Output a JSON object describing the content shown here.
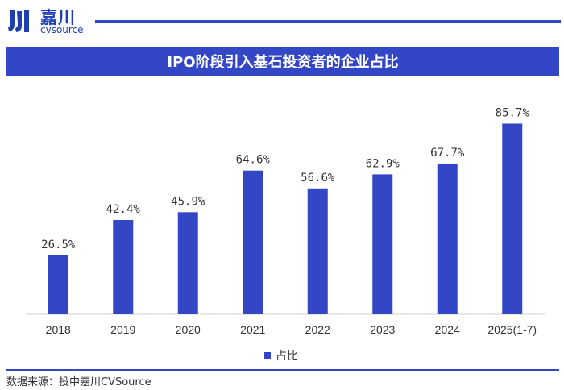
{
  "logo": {
    "cn": "嘉川",
    "en": "cvsource"
  },
  "title": "IPO阶段引入基石投资者的企业占比",
  "source": "数据来源：投中嘉川CVSource",
  "colors": {
    "bar": "#3347c6",
    "accent": "#3347c6"
  },
  "chart_data": {
    "type": "bar",
    "categories": [
      "2018",
      "2019",
      "2020",
      "2021",
      "2022",
      "2023",
      "2024",
      "2025(1-7)"
    ],
    "series": [
      {
        "name": "占比",
        "values": [
          26.5,
          42.4,
          45.9,
          64.6,
          56.6,
          62.9,
          67.7,
          85.7
        ]
      }
    ],
    "data_labels": [
      "26.5%",
      "42.4%",
      "45.9%",
      "64.6%",
      "56.6%",
      "62.9%",
      "67.7%",
      "85.7%"
    ],
    "unit": "%",
    "ylim": [
      0,
      100
    ],
    "grid": false,
    "legend": "bottom-center"
  }
}
